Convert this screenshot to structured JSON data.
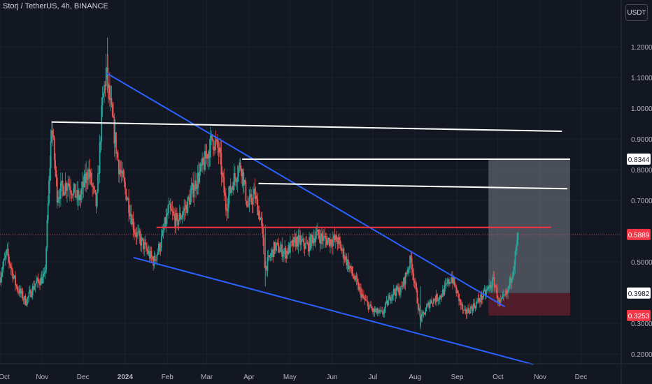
{
  "header": {
    "symbol_title": "Storj / TetherUS, 4h, BINANCE",
    "currency": "USDT"
  },
  "colors": {
    "background": "#131722",
    "grid": "#1e222d",
    "candle_up": "#26a69a",
    "candle_down": "#ef5350",
    "trendline": "#2962ff",
    "horizontal_level": "#ffffff",
    "support_level": "#f23645",
    "target_zone": "#787b86",
    "stop_zone": "#5d1f2b"
  },
  "chart_data": {
    "type": "candlestick",
    "timeframe": "4h",
    "exchange": "BINANCE",
    "pair": "Storj / TetherUS",
    "x_axis": {
      "tick_labels": [
        "Oct",
        "Nov",
        "Dec",
        "2024",
        "Feb",
        "Mar",
        "Apr",
        "May",
        "Jun",
        "Jul",
        "Aug",
        "Sep",
        "Oct",
        "Nov",
        "Dec"
      ],
      "range": [
        "2023-10-01",
        "2024-12-10"
      ]
    },
    "y_axis": {
      "tick_labels": [
        "1.2000",
        "1.1000",
        "1.0000",
        "0.9000",
        "0.8000",
        "0.7000",
        "0.5000",
        "0.3000",
        "0.2000"
      ],
      "ticks": [
        1.2,
        1.1,
        1.0,
        0.9,
        0.8,
        0.7,
        0.5,
        0.3,
        0.2
      ],
      "range": [
        0.17,
        1.3
      ]
    },
    "price_markers": [
      {
        "label": "0.8344",
        "value": 0.8344,
        "style": "light"
      },
      {
        "label": "0.5889",
        "value": 0.5889,
        "style": "current"
      },
      {
        "label": "0.3982",
        "value": 0.3982,
        "style": "light"
      },
      {
        "label": "0.3253",
        "value": 0.3253,
        "style": "stop"
      }
    ],
    "price_path": [
      [
        "2023-10-01",
        0.45
      ],
      [
        "2023-10-06",
        0.53
      ],
      [
        "2023-10-13",
        0.42
      ],
      [
        "2023-10-20",
        0.37
      ],
      [
        "2023-10-27",
        0.43
      ],
      [
        "2023-11-03",
        0.45
      ],
      [
        "2023-11-08",
        0.95
      ],
      [
        "2023-11-12",
        0.72
      ],
      [
        "2023-11-20",
        0.76
      ],
      [
        "2023-11-28",
        0.7
      ],
      [
        "2023-12-05",
        0.8
      ],
      [
        "2023-12-11",
        0.68
      ],
      [
        "2023-12-15",
        1.0
      ],
      [
        "2023-12-18",
        1.12
      ],
      [
        "2023-12-22",
        0.98
      ],
      [
        "2023-12-27",
        0.82
      ],
      [
        "2024-01-03",
        0.7
      ],
      [
        "2024-01-08",
        0.6
      ],
      [
        "2024-01-15",
        0.55
      ],
      [
        "2024-01-22",
        0.5
      ],
      [
        "2024-01-27",
        0.56
      ],
      [
        "2024-02-02",
        0.67
      ],
      [
        "2024-02-08",
        0.63
      ],
      [
        "2024-02-15",
        0.68
      ],
      [
        "2024-02-22",
        0.76
      ],
      [
        "2024-02-28",
        0.82
      ],
      [
        "2024-03-05",
        0.9
      ],
      [
        "2024-03-10",
        0.86
      ],
      [
        "2024-03-15",
        0.68
      ],
      [
        "2024-03-20",
        0.76
      ],
      [
        "2024-03-26",
        0.82
      ],
      [
        "2024-03-31",
        0.68
      ],
      [
        "2024-04-05",
        0.72
      ],
      [
        "2024-04-10",
        0.63
      ],
      [
        "2024-04-13",
        0.48
      ],
      [
        "2024-04-20",
        0.55
      ],
      [
        "2024-04-28",
        0.53
      ],
      [
        "2024-05-06",
        0.57
      ],
      [
        "2024-05-14",
        0.55
      ],
      [
        "2024-05-20",
        0.59
      ],
      [
        "2024-05-28",
        0.57
      ],
      [
        "2024-06-05",
        0.57
      ],
      [
        "2024-06-12",
        0.5
      ],
      [
        "2024-06-18",
        0.44
      ],
      [
        "2024-06-24",
        0.38
      ],
      [
        "2024-07-01",
        0.34
      ],
      [
        "2024-07-08",
        0.33
      ],
      [
        "2024-07-15",
        0.4
      ],
      [
        "2024-07-22",
        0.41
      ],
      [
        "2024-07-29",
        0.51
      ],
      [
        "2024-08-05",
        0.31
      ],
      [
        "2024-08-12",
        0.37
      ],
      [
        "2024-08-20",
        0.39
      ],
      [
        "2024-08-28",
        0.45
      ],
      [
        "2024-09-06",
        0.33
      ],
      [
        "2024-09-14",
        0.36
      ],
      [
        "2024-09-22",
        0.4
      ],
      [
        "2024-09-28",
        0.44
      ],
      [
        "2024-10-02",
        0.36
      ],
      [
        "2024-10-08",
        0.4
      ],
      [
        "2024-10-13",
        0.5
      ],
      [
        "2024-10-16",
        0.59
      ]
    ],
    "drawings": [
      {
        "name": "upper-trendline",
        "kind": "trendline",
        "color": "trendline",
        "from": [
          "2023-12-18",
          1.115
        ],
        "to": [
          "2024-10-06",
          0.354
        ]
      },
      {
        "name": "lower-trendline",
        "kind": "trendline",
        "color": "trendline",
        "from": [
          "2024-01-07",
          0.514
        ],
        "to": [
          "2024-10-27",
          0.166
        ]
      },
      {
        "name": "resistance-line-1",
        "kind": "level",
        "color": "horizontal_level",
        "from": [
          "2023-11-08",
          0.955
        ],
        "to": [
          "2024-11-17",
          0.925
        ]
      },
      {
        "name": "resistance-line-2",
        "kind": "level",
        "color": "horizontal_level",
        "from": [
          "2024-03-27",
          0.834
        ],
        "to": [
          "2024-11-23",
          0.834
        ]
      },
      {
        "name": "resistance-line-3",
        "kind": "level",
        "color": "horizontal_level",
        "from": [
          "2024-04-08",
          0.755
        ],
        "to": [
          "2024-11-21",
          0.738
        ]
      },
      {
        "name": "support-line",
        "kind": "level",
        "color": "support_level",
        "from": [
          "2024-01-24",
          0.612
        ],
        "to": [
          "2024-11-09",
          0.612
        ]
      }
    ],
    "position": {
      "start": "2024-09-24",
      "end": "2024-11-23",
      "target": 0.8344,
      "entry": 0.3982,
      "stop": 0.3253
    }
  }
}
